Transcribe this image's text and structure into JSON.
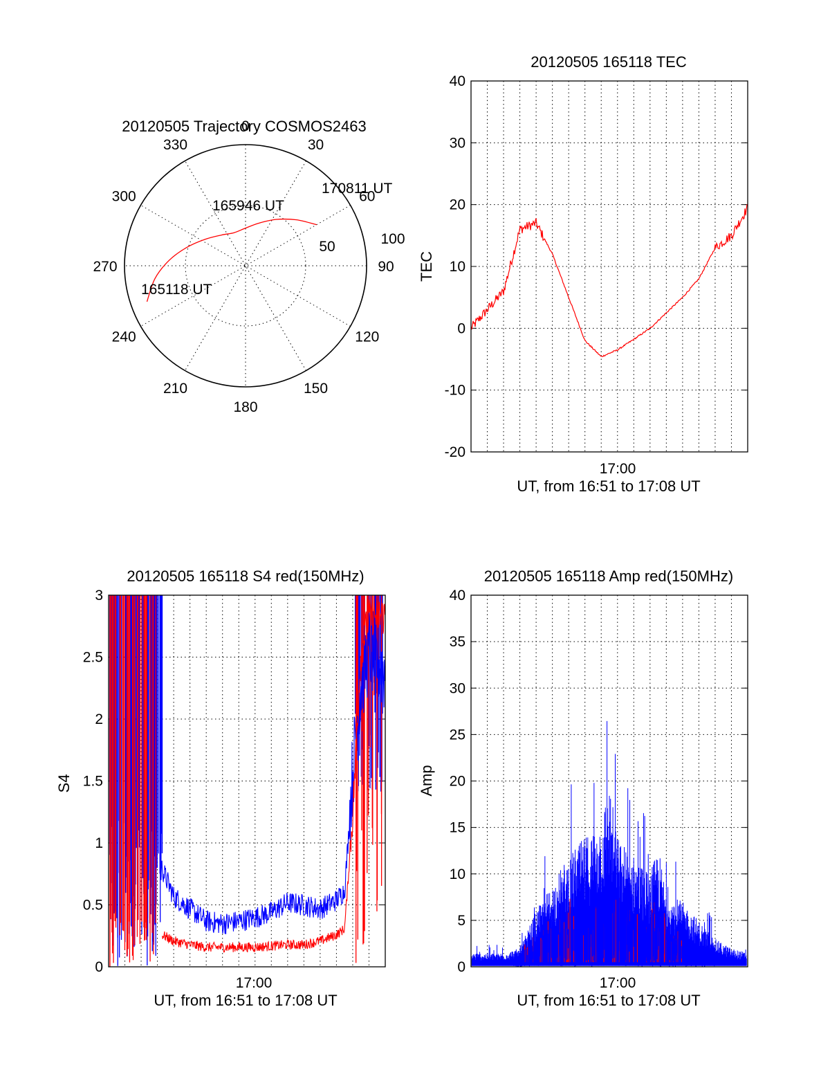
{
  "chart_data": [
    {
      "type": "polar",
      "title": "20120505 Trajectory COSMOS2463",
      "azimuth_labels": [
        "0",
        "30",
        "60",
        "90",
        "120",
        "150",
        "180",
        "210",
        "240",
        "270",
        "300",
        "330"
      ],
      "elevation_labels": [
        "50",
        "100"
      ],
      "annotations": [
        "165118 UT",
        "165946 UT",
        "170811 UT"
      ],
      "series": [
        {
          "color": "#ff0000",
          "points": [
            {
              "az": 250,
              "el": 12
            },
            {
              "az": 262,
              "el": 22
            },
            {
              "az": 274,
              "el": 33
            },
            {
              "az": 287,
              "el": 44
            },
            {
              "az": 303,
              "el": 54
            },
            {
              "az": 322,
              "el": 61
            },
            {
              "az": 341,
              "el": 64
            },
            {
              "az": 0,
              "el": 62
            },
            {
              "az": 17,
              "el": 57
            },
            {
              "az": 33,
              "el": 49
            },
            {
              "az": 48,
              "el": 39
            },
            {
              "az": 60,
              "el": 29
            }
          ]
        }
      ]
    },
    {
      "type": "line",
      "title": "20120505 165118 TEC",
      "ylabel": "TEC",
      "xlabel": "UT, from 16:51 to 17:08 UT",
      "xtick_labels": [
        "17:00"
      ],
      "ytick_labels": [
        "40",
        "30",
        "20",
        "10",
        "0",
        "-10",
        "-20"
      ],
      "ylim": [
        -20,
        40
      ],
      "grid": true,
      "series": [
        {
          "color": "#ff0000",
          "x_min": [
            0,
            1,
            2,
            3,
            4,
            5,
            6,
            7,
            8,
            9,
            10,
            11,
            12,
            13,
            14,
            15,
            16,
            17
          ],
          "y": [
            0,
            3,
            6,
            16,
            17,
            12,
            5,
            -2,
            -4.6,
            -3.5,
            -1.8,
            0,
            2.5,
            5,
            8,
            13,
            15,
            19.5
          ]
        }
      ]
    },
    {
      "type": "line",
      "title": "20120505 165118 S4 red(150MHz)",
      "ylabel": "S4",
      "xlabel": "UT, from 16:51 to 17:08 UT",
      "xtick_labels": [
        "17:00"
      ],
      "ytick_labels": [
        "3",
        "2.5",
        "2",
        "1.5",
        "1",
        "0.5",
        "0"
      ],
      "ylim": [
        0,
        3
      ],
      "grid": true,
      "series": [
        {
          "color": "#0000ff",
          "x_min": [
            3.2,
            4,
            5,
            6,
            7,
            8,
            9,
            10,
            11,
            12,
            13,
            14,
            14.5,
            15,
            15.5,
            16,
            17
          ],
          "y": [
            0.8,
            0.55,
            0.45,
            0.35,
            0.33,
            0.35,
            0.38,
            0.42,
            0.5,
            0.48,
            0.45,
            0.52,
            0.6,
            1.5,
            2.2,
            2.5,
            2.3
          ]
        },
        {
          "color": "#ff0000",
          "x_min": [
            3.3,
            4,
            5,
            6,
            7,
            8,
            9,
            10,
            11,
            12,
            13,
            14,
            14.5,
            15,
            15.5,
            16,
            17
          ],
          "y": [
            0.25,
            0.2,
            0.17,
            0.15,
            0.15,
            0.15,
            0.15,
            0.16,
            0.17,
            0.17,
            0.2,
            0.25,
            0.3,
            1.2,
            2.5,
            2.8,
            2.8
          ]
        }
      ]
    },
    {
      "type": "line",
      "title": "20120505 165118 Amp red(150MHz)",
      "ylabel": "Amp",
      "xlabel": "UT, from 16:51 to 17:08 UT",
      "xtick_labels": [
        "17:00"
      ],
      "ytick_labels": [
        "40",
        "35",
        "30",
        "25",
        "20",
        "15",
        "10",
        "5",
        "0"
      ],
      "ylim": [
        0,
        40
      ],
      "grid": true,
      "series": [
        {
          "color": "#0000ff",
          "x_min": [
            0,
            2,
            3,
            4,
            5,
            6,
            7,
            8,
            8.5,
            9,
            10,
            11,
            11.5,
            12,
            13,
            14,
            15,
            16,
            17
          ],
          "y": [
            1.5,
            1.5,
            2,
            6,
            9,
            12,
            14,
            16,
            20,
            14,
            12,
            10,
            13,
            8,
            7,
            5,
            3,
            2,
            1.5
          ]
        },
        {
          "color": "#ff0000",
          "x_min": [
            3,
            5,
            6,
            7,
            8,
            9,
            10,
            11,
            12,
            13
          ],
          "y": [
            2,
            5,
            7,
            6,
            6,
            7,
            6,
            7,
            5,
            3
          ]
        }
      ]
    }
  ]
}
